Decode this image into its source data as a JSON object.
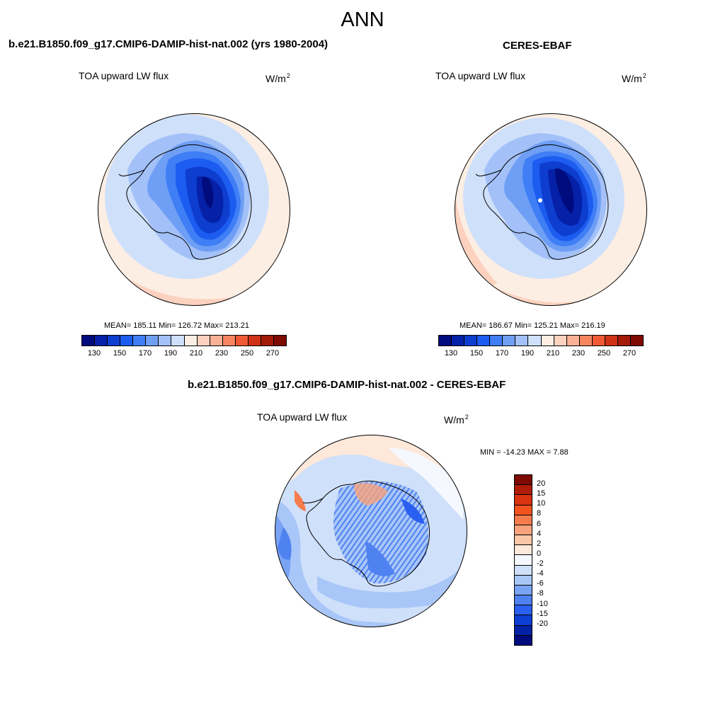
{
  "main_title": "ANN",
  "panels": {
    "model": {
      "title": "b.e21.B1850.f09_g17.CMIP6-DAMIP-hist-nat.002 (yrs 1980-2004)",
      "variable": "TOA upward LW flux",
      "units": "W/m",
      "units_exp": "2",
      "stats": "MEAN= 185.11  Min= 126.72  Max= 213.21"
    },
    "obs": {
      "title": "CERES-EBAF",
      "variable": "TOA upward LW flux",
      "units": "W/m",
      "units_exp": "2",
      "stats": "MEAN= 186.67  Min= 125.21  Max= 216.19"
    },
    "diff": {
      "title": "b.e21.B1850.f09_g17.CMIP6-DAMIP-hist-nat.002 - CERES-EBAF",
      "variable": "TOA upward LW flux",
      "units": "W/m",
      "units_exp": "2",
      "stats": "MIN = -14.23 MAX =   7.88"
    }
  },
  "chart_data": [
    {
      "type": "heatmap",
      "projection": "south polar stereographic",
      "title": "b.e21.B1850.f09_g17.CMIP6-DAMIP-hist-nat.002 (yrs 1980-2004)",
      "variable": "TOA upward LW flux",
      "units": "W/m2",
      "mean": 185.11,
      "min": 126.72,
      "max": 213.21,
      "colorbar": {
        "orientation": "horizontal",
        "levels": [
          130,
          140,
          150,
          160,
          170,
          180,
          190,
          200,
          210,
          220,
          230,
          240,
          250,
          260,
          270
        ],
        "tick_labels": [
          "130",
          "150",
          "170",
          "190",
          "210",
          "230",
          "250",
          "270"
        ],
        "colors": [
          "#000c7d",
          "#0521a8",
          "#0e3ecf",
          "#1c5cf0",
          "#3f7ef5",
          "#6f9ff5",
          "#a3c1f8",
          "#cfe0fa",
          "#fdeee3",
          "#fcd2bf",
          "#f9b095",
          "#f78560",
          "#ef5a34",
          "#cf3216",
          "#a31a09",
          "#7d0a03"
        ]
      }
    },
    {
      "type": "heatmap",
      "projection": "south polar stereographic",
      "title": "CERES-EBAF",
      "variable": "TOA upward LW flux",
      "units": "W/m2",
      "mean": 186.67,
      "min": 125.21,
      "max": 216.19,
      "colorbar": {
        "orientation": "horizontal",
        "levels": [
          130,
          140,
          150,
          160,
          170,
          180,
          190,
          200,
          210,
          220,
          230,
          240,
          250,
          260,
          270
        ],
        "tick_labels": [
          "130",
          "150",
          "170",
          "190",
          "210",
          "230",
          "250",
          "270"
        ],
        "colors": [
          "#000c7d",
          "#0521a8",
          "#0e3ecf",
          "#1c5cf0",
          "#3f7ef5",
          "#6f9ff5",
          "#a3c1f8",
          "#cfe0fa",
          "#fdeee3",
          "#fcd2bf",
          "#f9b095",
          "#f78560",
          "#ef5a34",
          "#cf3216",
          "#a31a09",
          "#7d0a03"
        ]
      }
    },
    {
      "type": "heatmap",
      "projection": "south polar stereographic",
      "title": "b.e21.B1850.f09_g17.CMIP6-DAMIP-hist-nat.002 - CERES-EBAF",
      "variable": "TOA upward LW flux",
      "units": "W/m2",
      "min": -14.23,
      "max": 7.88,
      "colorbar": {
        "orientation": "vertical",
        "tick_labels": [
          "20",
          "15",
          "10",
          "8",
          "6",
          "4",
          "2",
          "0",
          "-2",
          "-4",
          "-6",
          "-8",
          "-10",
          "-15",
          "-20"
        ],
        "colors": [
          "#7d0a03",
          "#b01c07",
          "#d9330f",
          "#f4531f",
          "#f77c4d",
          "#f9a37c",
          "#fbc7a8",
          "#fde8da",
          "#f5f8ff",
          "#cfe0fa",
          "#a9c6f8",
          "#7aa3f4",
          "#4f82f1",
          "#2a5ff0",
          "#0d3fd4",
          "#0422a6",
          "#000c7d"
        ]
      }
    }
  ]
}
